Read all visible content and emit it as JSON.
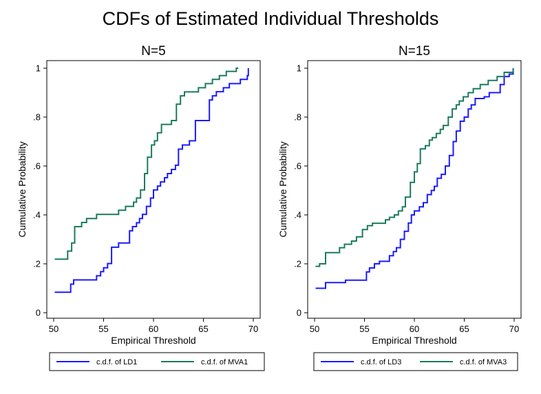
{
  "figure": {
    "title": "CDFs of Estimated Individual Thresholds"
  },
  "chart_data": [
    {
      "type": "line",
      "step": true,
      "title": "N=5",
      "xlabel": "Empirical Threshold",
      "ylabel": "Cumulative Probability",
      "xlim": [
        50,
        70
      ],
      "ylim": [
        0,
        1
      ],
      "xticks": [
        50,
        55,
        60,
        65,
        70
      ],
      "yticks": [
        0,
        0.2,
        0.4,
        0.6,
        0.8,
        1
      ],
      "xtick_labels": [
        "50",
        "55",
        "60",
        "65",
        "70"
      ],
      "ytick_labels": [
        "0",
        ".2",
        ".4",
        ".6",
        ".8",
        "1"
      ],
      "legend": {
        "position": "bottom",
        "entries": [
          "c.d.f. of  LD1",
          "c.d.f. of  MVA1"
        ]
      },
      "series": [
        {
          "name": "c.d.f. of  LD1",
          "color": "#1a1aff",
          "x": [
            50.1,
            51.4,
            51.7,
            52.0,
            54.0,
            54.3,
            54.7,
            55.0,
            55.4,
            55.8,
            56.5,
            57.6,
            57.9,
            58.3,
            58.6,
            58.9,
            59.3,
            59.7,
            60.0,
            60.4,
            60.7,
            61.1,
            61.4,
            61.8,
            62.2,
            62.5,
            62.9,
            63.6,
            64.2,
            64.6,
            65.6,
            65.9,
            66.3,
            67.0,
            67.6,
            68.0,
            68.7,
            69.4,
            69.5
          ],
          "y": [
            0.084,
            0.084,
            0.117,
            0.134,
            0.134,
            0.151,
            0.168,
            0.184,
            0.201,
            0.268,
            0.285,
            0.335,
            0.352,
            0.368,
            0.385,
            0.402,
            0.435,
            0.469,
            0.502,
            0.518,
            0.535,
            0.552,
            0.569,
            0.586,
            0.603,
            0.669,
            0.686,
            0.703,
            0.786,
            0.786,
            0.87,
            0.887,
            0.904,
            0.92,
            0.937,
            0.937,
            0.954,
            0.97,
            1.0
          ]
        },
        {
          "name": "c.d.f. of  MVA1",
          "color": "#1a7a5e",
          "x": [
            50.1,
            51.1,
            51.4,
            51.8,
            52.1,
            52.8,
            53.3,
            54.3,
            56.2,
            56.5,
            57.2,
            57.6,
            58.0,
            58.3,
            58.7,
            59.1,
            59.4,
            59.8,
            60.1,
            60.4,
            60.8,
            61.1,
            61.8,
            62.3,
            62.7,
            63.1,
            63.4,
            63.8,
            64.5,
            65.2,
            65.9,
            66.6,
            67.3,
            68.3,
            68.5
          ],
          "y": [
            0.219,
            0.219,
            0.252,
            0.285,
            0.352,
            0.369,
            0.385,
            0.402,
            0.402,
            0.419,
            0.435,
            0.435,
            0.452,
            0.469,
            0.502,
            0.569,
            0.636,
            0.686,
            0.703,
            0.736,
            0.77,
            0.77,
            0.786,
            0.853,
            0.887,
            0.903,
            0.903,
            0.903,
            0.92,
            0.937,
            0.954,
            0.97,
            0.987,
            1.0,
            1.0
          ]
        }
      ]
    },
    {
      "type": "line",
      "step": true,
      "title": "N=15",
      "xlabel": "Empirical Threshold",
      "ylabel": "Cumulative Probability",
      "xlim": [
        50,
        70
      ],
      "ylim": [
        0,
        1
      ],
      "xticks": [
        50,
        55,
        60,
        65,
        70
      ],
      "yticks": [
        0,
        0.2,
        0.4,
        0.6,
        0.8,
        1
      ],
      "xtick_labels": [
        "50",
        "55",
        "60",
        "65",
        "70"
      ],
      "ytick_labels": [
        "0",
        ".2",
        ".4",
        ".6",
        ".8",
        "1"
      ],
      "legend": {
        "position": "bottom",
        "entries": [
          "c.d.f. of  LD3",
          "c.d.f. of  MVA3"
        ]
      },
      "series": [
        {
          "name": "c.d.f. of  LD3",
          "color": "#1a1aff",
          "x": [
            50.1,
            51.1,
            53.1,
            55.2,
            55.5,
            56.0,
            56.5,
            57.0,
            57.5,
            57.9,
            58.2,
            58.6,
            59.0,
            59.4,
            59.7,
            60.0,
            60.5,
            60.9,
            61.3,
            61.7,
            62.0,
            62.3,
            62.7,
            63.1,
            63.5,
            63.9,
            64.2,
            64.6,
            65.0,
            65.4,
            65.7,
            66.1,
            66.6,
            67.0,
            67.5,
            68.6,
            69.0,
            69.5,
            69.9
          ],
          "y": [
            0.1,
            0.123,
            0.133,
            0.167,
            0.183,
            0.2,
            0.21,
            0.21,
            0.233,
            0.25,
            0.266,
            0.3,
            0.333,
            0.367,
            0.4,
            0.416,
            0.433,
            0.45,
            0.483,
            0.5,
            0.517,
            0.55,
            0.566,
            0.6,
            0.643,
            0.7,
            0.743,
            0.783,
            0.8,
            0.833,
            0.85,
            0.876,
            0.876,
            0.883,
            0.9,
            0.933,
            0.966,
            0.976,
            1.0
          ]
        },
        {
          "name": "c.d.f. of  MVA3",
          "color": "#1a7a5e",
          "x": [
            50.1,
            50.5,
            51.1,
            52.5,
            53.0,
            53.7,
            54.2,
            54.8,
            55.3,
            55.8,
            56.5,
            57.1,
            57.5,
            58.0,
            58.4,
            58.8,
            59.1,
            59.6,
            60.0,
            60.3,
            60.6,
            61.1,
            61.5,
            61.8,
            62.2,
            62.6,
            62.9,
            63.4,
            63.8,
            64.2,
            64.5,
            64.9,
            65.4,
            65.9,
            66.6,
            67.4,
            68.3,
            69.0,
            69.9
          ],
          "y": [
            0.19,
            0.2,
            0.246,
            0.266,
            0.28,
            0.293,
            0.31,
            0.34,
            0.356,
            0.366,
            0.366,
            0.38,
            0.39,
            0.4,
            0.416,
            0.433,
            0.473,
            0.533,
            0.576,
            0.61,
            0.67,
            0.683,
            0.706,
            0.716,
            0.733,
            0.75,
            0.766,
            0.8,
            0.833,
            0.85,
            0.866,
            0.883,
            0.9,
            0.916,
            0.933,
            0.95,
            0.966,
            0.983,
            1.0
          ]
        }
      ]
    }
  ]
}
